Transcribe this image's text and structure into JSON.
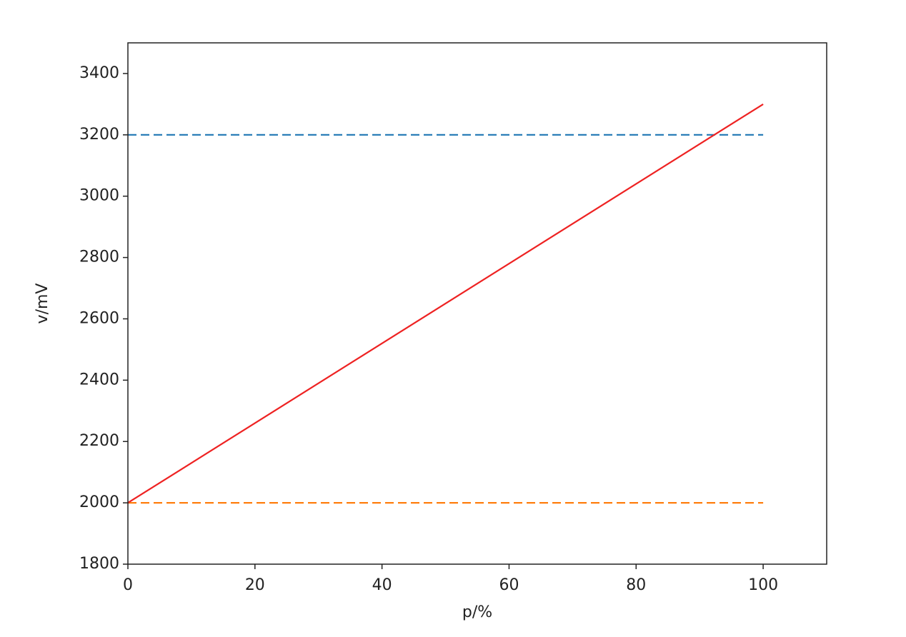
{
  "chart_data": {
    "type": "line",
    "xlabel": "p/%",
    "ylabel": "v/mV",
    "xlim": [
      0,
      110
    ],
    "xticks": [
      0,
      20,
      40,
      60,
      80,
      100
    ],
    "ylim": [
      1800,
      3500
    ],
    "yticks": [
      1800,
      2000,
      2200,
      2400,
      2600,
      2800,
      3000,
      3200,
      3400
    ],
    "series": [
      {
        "color": "#1f77b4",
        "linestyle": "dashed",
        "x": [
          0,
          100
        ],
        "values": [
          3200,
          3200
        ]
      },
      {
        "color": "#ff7f0e",
        "linestyle": "dashed",
        "x": [
          0,
          100
        ],
        "values": [
          2000,
          2000
        ]
      },
      {
        "color": "#ee2222",
        "linestyle": "solid",
        "x": [
          0,
          100
        ],
        "values": [
          2000,
          3300
        ]
      }
    ]
  }
}
